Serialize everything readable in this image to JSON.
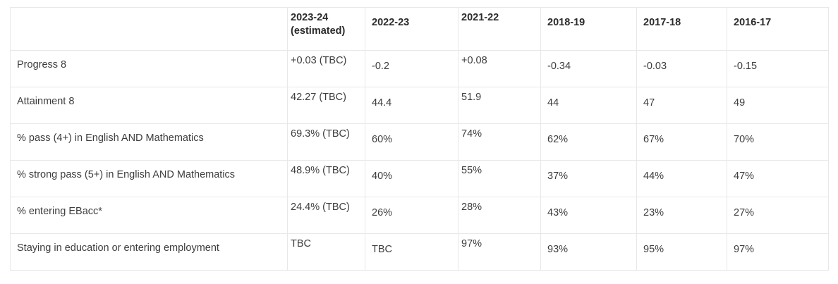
{
  "table": {
    "name": "school-performance-measures",
    "columns": [
      {
        "label": ""
      },
      {
        "label": "2023-24 (estimated)"
      },
      {
        "label": "2022-23"
      },
      {
        "label": "2021-22"
      },
      {
        "label": "2018-19"
      },
      {
        "label": "2017-18"
      },
      {
        "label": "2016-17"
      }
    ],
    "rows": [
      {
        "label": "Progress 8",
        "values": [
          "+0.03 (TBC)",
          "-0.2",
          "+0.08",
          "-0.34",
          "-0.03",
          "-0.15"
        ]
      },
      {
        "label": "Attainment 8",
        "values": [
          "42.27 (TBC)",
          "44.4",
          "51.9",
          "44",
          "47",
          "49"
        ]
      },
      {
        "label": "% pass (4+) in English AND Mathematics",
        "values": [
          "69.3% (TBC)",
          "60%",
          "74%",
          "62%",
          "67%",
          "70%"
        ]
      },
      {
        "label": "% strong pass (5+) in English AND Mathematics",
        "values": [
          "48.9% (TBC)",
          "40%",
          "55%",
          "37%",
          "44%",
          "47%"
        ]
      },
      {
        "label": "% entering EBacc*",
        "values": [
          "24.4% (TBC)",
          "26%",
          "28%",
          "43%",
          "23%",
          "27%"
        ]
      },
      {
        "label": "Staying in education or entering employment",
        "values": [
          "TBC",
          "TBC",
          "97%",
          "93%",
          "95%",
          "97%"
        ]
      }
    ]
  },
  "colors": {
    "background": "#ffffff",
    "border": "#e8e8e8",
    "header_text": "#2a2a2a",
    "body_text": "#3d3d3d"
  }
}
